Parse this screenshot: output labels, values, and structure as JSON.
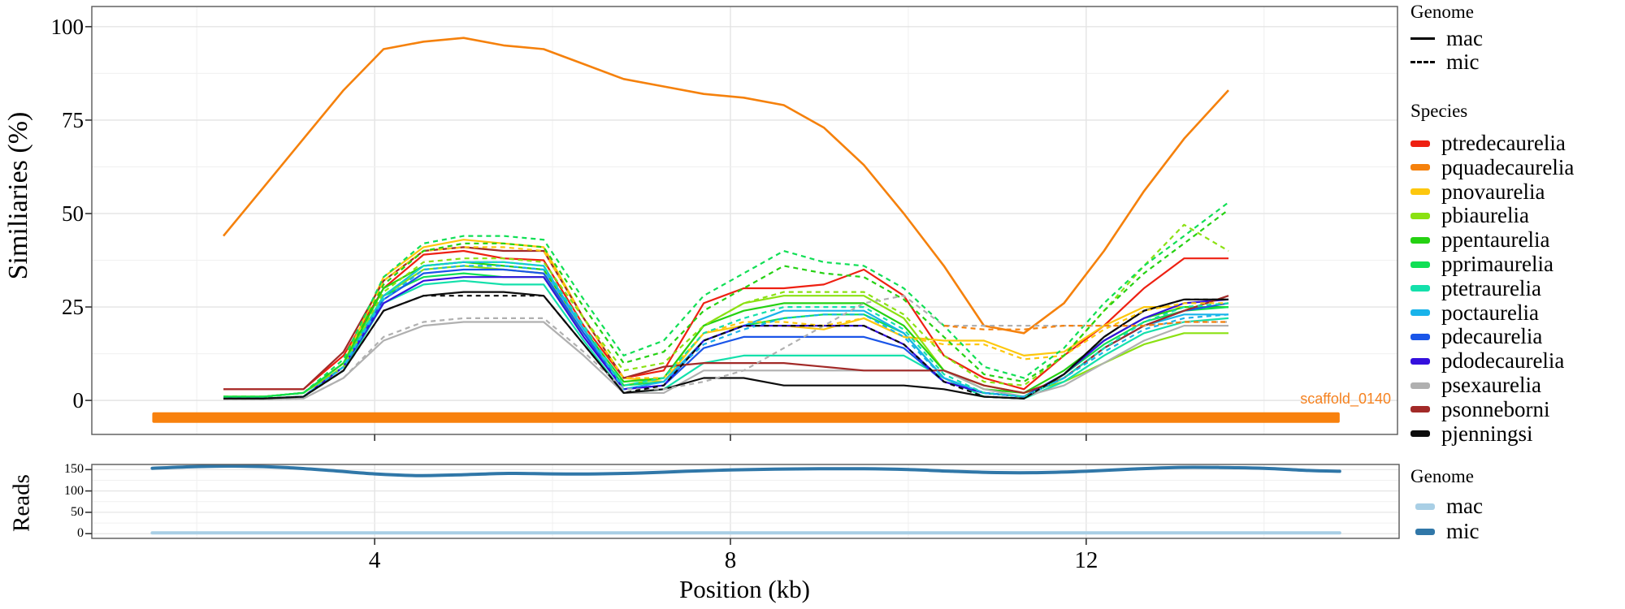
{
  "chart_data": [
    {
      "type": "line",
      "panel": "similarity",
      "ylabel": "Similiaries (%)",
      "xlabel": "Position (kb)",
      "xlim": [
        0.82,
        15.5
      ],
      "ylim_drawn": [
        -9.1,
        105.4
      ],
      "y_ticks": [
        0,
        25,
        50,
        75,
        100
      ],
      "x_ticks": [
        4,
        8,
        12
      ],
      "grid": "on",
      "x_common": [
        2.3,
        2.75,
        3.2,
        3.65,
        4.1,
        4.55,
        5,
        5.45,
        5.9,
        6.35,
        6.8,
        7.25,
        7.7,
        8.15,
        8.6,
        9.05,
        9.5,
        9.95,
        10.4,
        10.85,
        11.3,
        11.75,
        12.2,
        12.65,
        13.1,
        13.6
      ],
      "annotations": {
        "scaffold": {
          "label": "scaffold_0140",
          "color": "#f58220",
          "bar_color": "#f8810d",
          "bar_x": [
            1.5,
            14.85
          ],
          "bar_y_pct": -4.6
        }
      },
      "series": [
        {
          "name": "ptredecaurelia-mac",
          "species": "ptredecaurelia",
          "genome": "mac",
          "color": "#ee2012",
          "dash": false,
          "y": [
            3,
            3,
            3,
            12,
            30,
            39,
            40,
            38,
            37.5,
            20,
            6,
            8,
            26,
            30,
            30,
            31,
            35,
            28,
            12,
            6,
            3,
            12,
            20,
            30,
            38,
            38
          ]
        },
        {
          "name": "pquadecaurelia-mac",
          "species": "pquadecaurelia",
          "genome": "mac",
          "color": "#f5810c",
          "dash": false,
          "y": [
            44,
            57,
            70,
            83,
            94,
            96,
            97,
            95,
            94,
            90,
            86,
            84,
            82,
            81,
            79,
            73,
            63,
            50,
            36,
            20,
            18,
            26,
            40,
            56,
            70,
            83
          ]
        },
        {
          "name": "pnovaurelia-mac",
          "species": "pnovaurelia",
          "genome": "mac",
          "color": "#fdc70e",
          "dash": false,
          "y": [
            1,
            1,
            2,
            10,
            33,
            41,
            43,
            42,
            41,
            22,
            6,
            5,
            18,
            20,
            20,
            19,
            22,
            17,
            16,
            16,
            12,
            13,
            20,
            25,
            25,
            25
          ]
        },
        {
          "name": "pbiaurelia-mac",
          "species": "pbiaurelia",
          "genome": "mac",
          "color": "#8be112",
          "dash": false,
          "y": [
            1,
            1,
            2,
            9,
            28,
            35,
            36,
            35,
            34,
            18,
            4,
            6,
            20,
            26,
            28,
            28,
            28,
            22,
            8,
            4,
            2,
            5,
            10,
            15,
            18,
            18
          ]
        },
        {
          "name": "ppentaurelia-mac",
          "species": "ppentaurelia",
          "genome": "mac",
          "color": "#25d112",
          "dash": false,
          "y": [
            1,
            1,
            2,
            10,
            30,
            36,
            37,
            36,
            35,
            19,
            5,
            6,
            20,
            24,
            26,
            26,
            26,
            20,
            8,
            3,
            2,
            8,
            16,
            22,
            25,
            25
          ]
        },
        {
          "name": "pprimaurelia-mac",
          "species": "pprimaurelia",
          "genome": "mac",
          "color": "#10df55",
          "dash": false,
          "y": [
            1,
            1,
            2,
            10,
            28,
            33,
            34,
            33,
            33,
            18,
            4,
            5,
            16,
            20,
            22,
            23,
            23,
            18,
            6,
            2,
            1,
            7,
            15,
            21,
            24,
            25
          ]
        },
        {
          "name": "ptetraurelia-mac",
          "species": "ptetraurelia",
          "genome": "mac",
          "color": "#14e0ab",
          "dash": false,
          "y": [
            0.5,
            0.5,
            1,
            8,
            26,
            31,
            32,
            31,
            31,
            16,
            2,
            3,
            10,
            12,
            12,
            12,
            12,
            12,
            6,
            1,
            0.5,
            5,
            12,
            18,
            21,
            22
          ]
        },
        {
          "name": "poctaurelia-mac",
          "species": "poctaurelia",
          "genome": "mac",
          "color": "#19b3ea",
          "dash": false,
          "y": [
            0.5,
            0.5,
            1,
            9,
            28,
            36,
            37,
            37,
            36,
            19,
            3,
            5,
            16,
            20,
            24,
            24,
            24,
            18,
            6,
            2,
            1,
            6,
            14,
            20,
            23,
            23
          ]
        },
        {
          "name": "pdecaurelia-mac",
          "species": "pdecaurelia",
          "genome": "mac",
          "color": "#1a55e8",
          "dash": false,
          "y": [
            0.5,
            0.5,
            1,
            9,
            27,
            34,
            35,
            35,
            34,
            18,
            3,
            4,
            14,
            17,
            17,
            17,
            17,
            14,
            5,
            2,
            1,
            6,
            14,
            20,
            24,
            26
          ]
        },
        {
          "name": "pdodecaurelia-mac",
          "species": "pdodecaurelia",
          "genome": "mac",
          "color": "#3410dd",
          "dash": false,
          "y": [
            0.5,
            0.5,
            1,
            9,
            26,
            32,
            33,
            33,
            33,
            17,
            3,
            4,
            16,
            20,
            20,
            20,
            20,
            15,
            5,
            2,
            1,
            7,
            16,
            22,
            26,
            27
          ]
        },
        {
          "name": "psexaurelia-mac",
          "species": "psexaurelia",
          "genome": "mac",
          "color": "#b0b0b0",
          "dash": false,
          "y": [
            0.3,
            0.3,
            0.5,
            6,
            16,
            20,
            21,
            21,
            21,
            12,
            2,
            2,
            8,
            8,
            8,
            8,
            8,
            8,
            8,
            3,
            1,
            4,
            10,
            16,
            20,
            20
          ]
        },
        {
          "name": "psonneborni-mac",
          "species": "psonneborni",
          "genome": "mac",
          "color": "#a22a28",
          "dash": false,
          "y": [
            3,
            3,
            3,
            13,
            32,
            40,
            41,
            40,
            40,
            22,
            6,
            9,
            10,
            10,
            10,
            9,
            8,
            8,
            8,
            4,
            2,
            6,
            14,
            20,
            24,
            28
          ]
        },
        {
          "name": "pjenningsi-mac",
          "species": "pjenningsi",
          "genome": "mac",
          "color": "#0d0d0d",
          "dash": false,
          "y": [
            0.5,
            0.5,
            1,
            8,
            24,
            28,
            29,
            29,
            28,
            15,
            2,
            3,
            6,
            6,
            4,
            4,
            4,
            4,
            3,
            1,
            0.5,
            7,
            17,
            24,
            27,
            27
          ]
        },
        {
          "name": "pnovaurelia-mic",
          "species": "pnovaurelia",
          "genome": "mic",
          "color": "#fdc70e",
          "dash": true,
          "y": [
            1,
            1,
            2,
            10,
            32,
            40,
            41,
            41,
            40,
            22,
            6,
            6,
            18,
            21,
            21,
            20,
            22,
            17,
            15,
            15,
            11,
            12,
            19,
            24,
            26,
            26
          ]
        },
        {
          "name": "pbiaurelia-mic",
          "species": "pbiaurelia",
          "genome": "mic",
          "color": "#8be112",
          "dash": true,
          "y": [
            1,
            1,
            2,
            9,
            29,
            37,
            38,
            38,
            37,
            22,
            8,
            10,
            20,
            26,
            29,
            29,
            29,
            23,
            12,
            5,
            4,
            12,
            24,
            36,
            47,
            40
          ]
        },
        {
          "name": "ppentaurelia-mic",
          "species": "ppentaurelia",
          "genome": "mic",
          "color": "#25d112",
          "dash": true,
          "y": [
            1,
            1,
            2,
            10,
            31,
            40,
            42,
            42,
            41,
            25,
            10,
            13,
            24,
            30,
            36,
            34,
            33,
            27,
            17,
            7,
            5,
            12,
            24,
            34,
            42,
            51
          ]
        },
        {
          "name": "pprimaurelia-mic",
          "species": "pprimaurelia",
          "genome": "mic",
          "color": "#10df55",
          "dash": true,
          "y": [
            1,
            1,
            2,
            11,
            33,
            42,
            44,
            44,
            43,
            27,
            12,
            16,
            28,
            34,
            40,
            37,
            36,
            30,
            20,
            9,
            6,
            14,
            26,
            36,
            44,
            53
          ]
        },
        {
          "name": "ptetraurelia-mic",
          "species": "ptetraurelia",
          "genome": "mic",
          "color": "#14e0ab",
          "dash": true,
          "y": [
            0.5,
            0.5,
            1,
            9,
            28,
            36,
            37,
            37,
            36,
            20,
            4,
            6,
            18,
            22,
            25,
            25,
            25,
            19,
            7,
            2,
            1,
            6,
            14,
            21,
            25,
            26
          ]
        },
        {
          "name": "poctaurelia-mic",
          "species": "poctaurelia",
          "genome": "mic",
          "color": "#19b3ea",
          "dash": true,
          "y": [
            0.5,
            0.5,
            1,
            9,
            27,
            35,
            36,
            36,
            35,
            19,
            3,
            5,
            15,
            19,
            22,
            23,
            23,
            17,
            6,
            2,
            1,
            6,
            13,
            19,
            22,
            23
          ]
        },
        {
          "name": "psexaurelia-mic",
          "species": "psexaurelia",
          "genome": "mic",
          "color": "#b0b0b0",
          "dash": true,
          "y": [
            0.3,
            0.3,
            0.5,
            6,
            17,
            21,
            22,
            22,
            22,
            13,
            3,
            3,
            5,
            8,
            14,
            20,
            26,
            28,
            20,
            20,
            20,
            20,
            20,
            20,
            21,
            21
          ]
        },
        {
          "name": "pjenningsi-mic",
          "species": "pjenningsi",
          "genome": "mic",
          "color": "#0d0d0d",
          "dash": true,
          "y": [
            0.5,
            0.5,
            1,
            8,
            24,
            28,
            28,
            28,
            28,
            15,
            2,
            4,
            16,
            20,
            20,
            20,
            20,
            15,
            5,
            1,
            0.5,
            7,
            17,
            24,
            27,
            27
          ]
        },
        {
          "name": "pquadecaurelia-mic",
          "species": "pquadecaurelia",
          "genome": "mic",
          "color": "#f5810c",
          "dash": true,
          "x": [
            10.4,
            10.85,
            11.3,
            11.75,
            12.2,
            12.65,
            13.1,
            13.6
          ],
          "y": [
            20,
            19,
            19,
            20,
            20,
            20,
            21,
            21
          ]
        }
      ]
    },
    {
      "type": "line",
      "panel": "reads",
      "ylabel": "Reads",
      "xlim": [
        0.82,
        15.5
      ],
      "ylim_drawn": [
        -11,
        162
      ],
      "y_ticks": [
        0,
        50,
        100,
        150
      ],
      "x_ticks": [
        4,
        8,
        12
      ],
      "grid": "on",
      "x": [
        1.5,
        2,
        2.5,
        3,
        3.5,
        4,
        4.5,
        5,
        5.5,
        6,
        6.5,
        7,
        7.5,
        8,
        8.5,
        9,
        9.5,
        10,
        10.5,
        11,
        11.5,
        12,
        12.5,
        13,
        13.5,
        14,
        14.5,
        14.85
      ],
      "series": [
        {
          "name": "reads-mac",
          "genome": "mac",
          "color": "#a9cfe5",
          "y": [
            2,
            2,
            2,
            2,
            2,
            2,
            2,
            2,
            2,
            2,
            2,
            2,
            2,
            2,
            2,
            2,
            2,
            2,
            2,
            2,
            2,
            2,
            2,
            2,
            2,
            2,
            2,
            2
          ]
        },
        {
          "name": "reads-mic",
          "genome": "mic",
          "color": "#3077a8",
          "y": [
            153,
            157,
            158,
            155,
            148,
            140,
            136,
            138,
            141,
            140,
            140,
            142,
            146,
            149,
            151,
            152,
            152,
            150,
            146,
            143,
            143,
            146,
            151,
            155,
            155,
            153,
            148,
            146
          ]
        }
      ]
    }
  ],
  "legends": {
    "genome_top": {
      "title": "Genome",
      "items": [
        {
          "label": "mac",
          "line": "solid"
        },
        {
          "label": "mic",
          "line": "dashed"
        }
      ]
    },
    "species": {
      "title": "Species",
      "items": [
        {
          "label": "ptredecaurelia",
          "color": "#ee2012"
        },
        {
          "label": "pquadecaurelia",
          "color": "#f5810c"
        },
        {
          "label": "pnovaurelia",
          "color": "#fdc70e"
        },
        {
          "label": "pbiaurelia",
          "color": "#8be112"
        },
        {
          "label": "ppentaurelia",
          "color": "#25d112"
        },
        {
          "label": "pprimaurelia",
          "color": "#10df55"
        },
        {
          "label": "ptetraurelia",
          "color": "#14e0ab"
        },
        {
          "label": "poctaurelia",
          "color": "#19b3ea"
        },
        {
          "label": "pdecaurelia",
          "color": "#1a55e8"
        },
        {
          "label": "pdodecaurelia",
          "color": "#3410dd"
        },
        {
          "label": "psexaurelia",
          "color": "#b0b0b0"
        },
        {
          "label": "psonneborni",
          "color": "#a22a28"
        },
        {
          "label": "pjenningsi",
          "color": "#0d0d0d"
        }
      ]
    },
    "genome_bottom": {
      "title": "Genome",
      "items": [
        {
          "label": "mac",
          "color": "#a9cfe5"
        },
        {
          "label": "mic",
          "color": "#3077a8"
        }
      ]
    }
  }
}
